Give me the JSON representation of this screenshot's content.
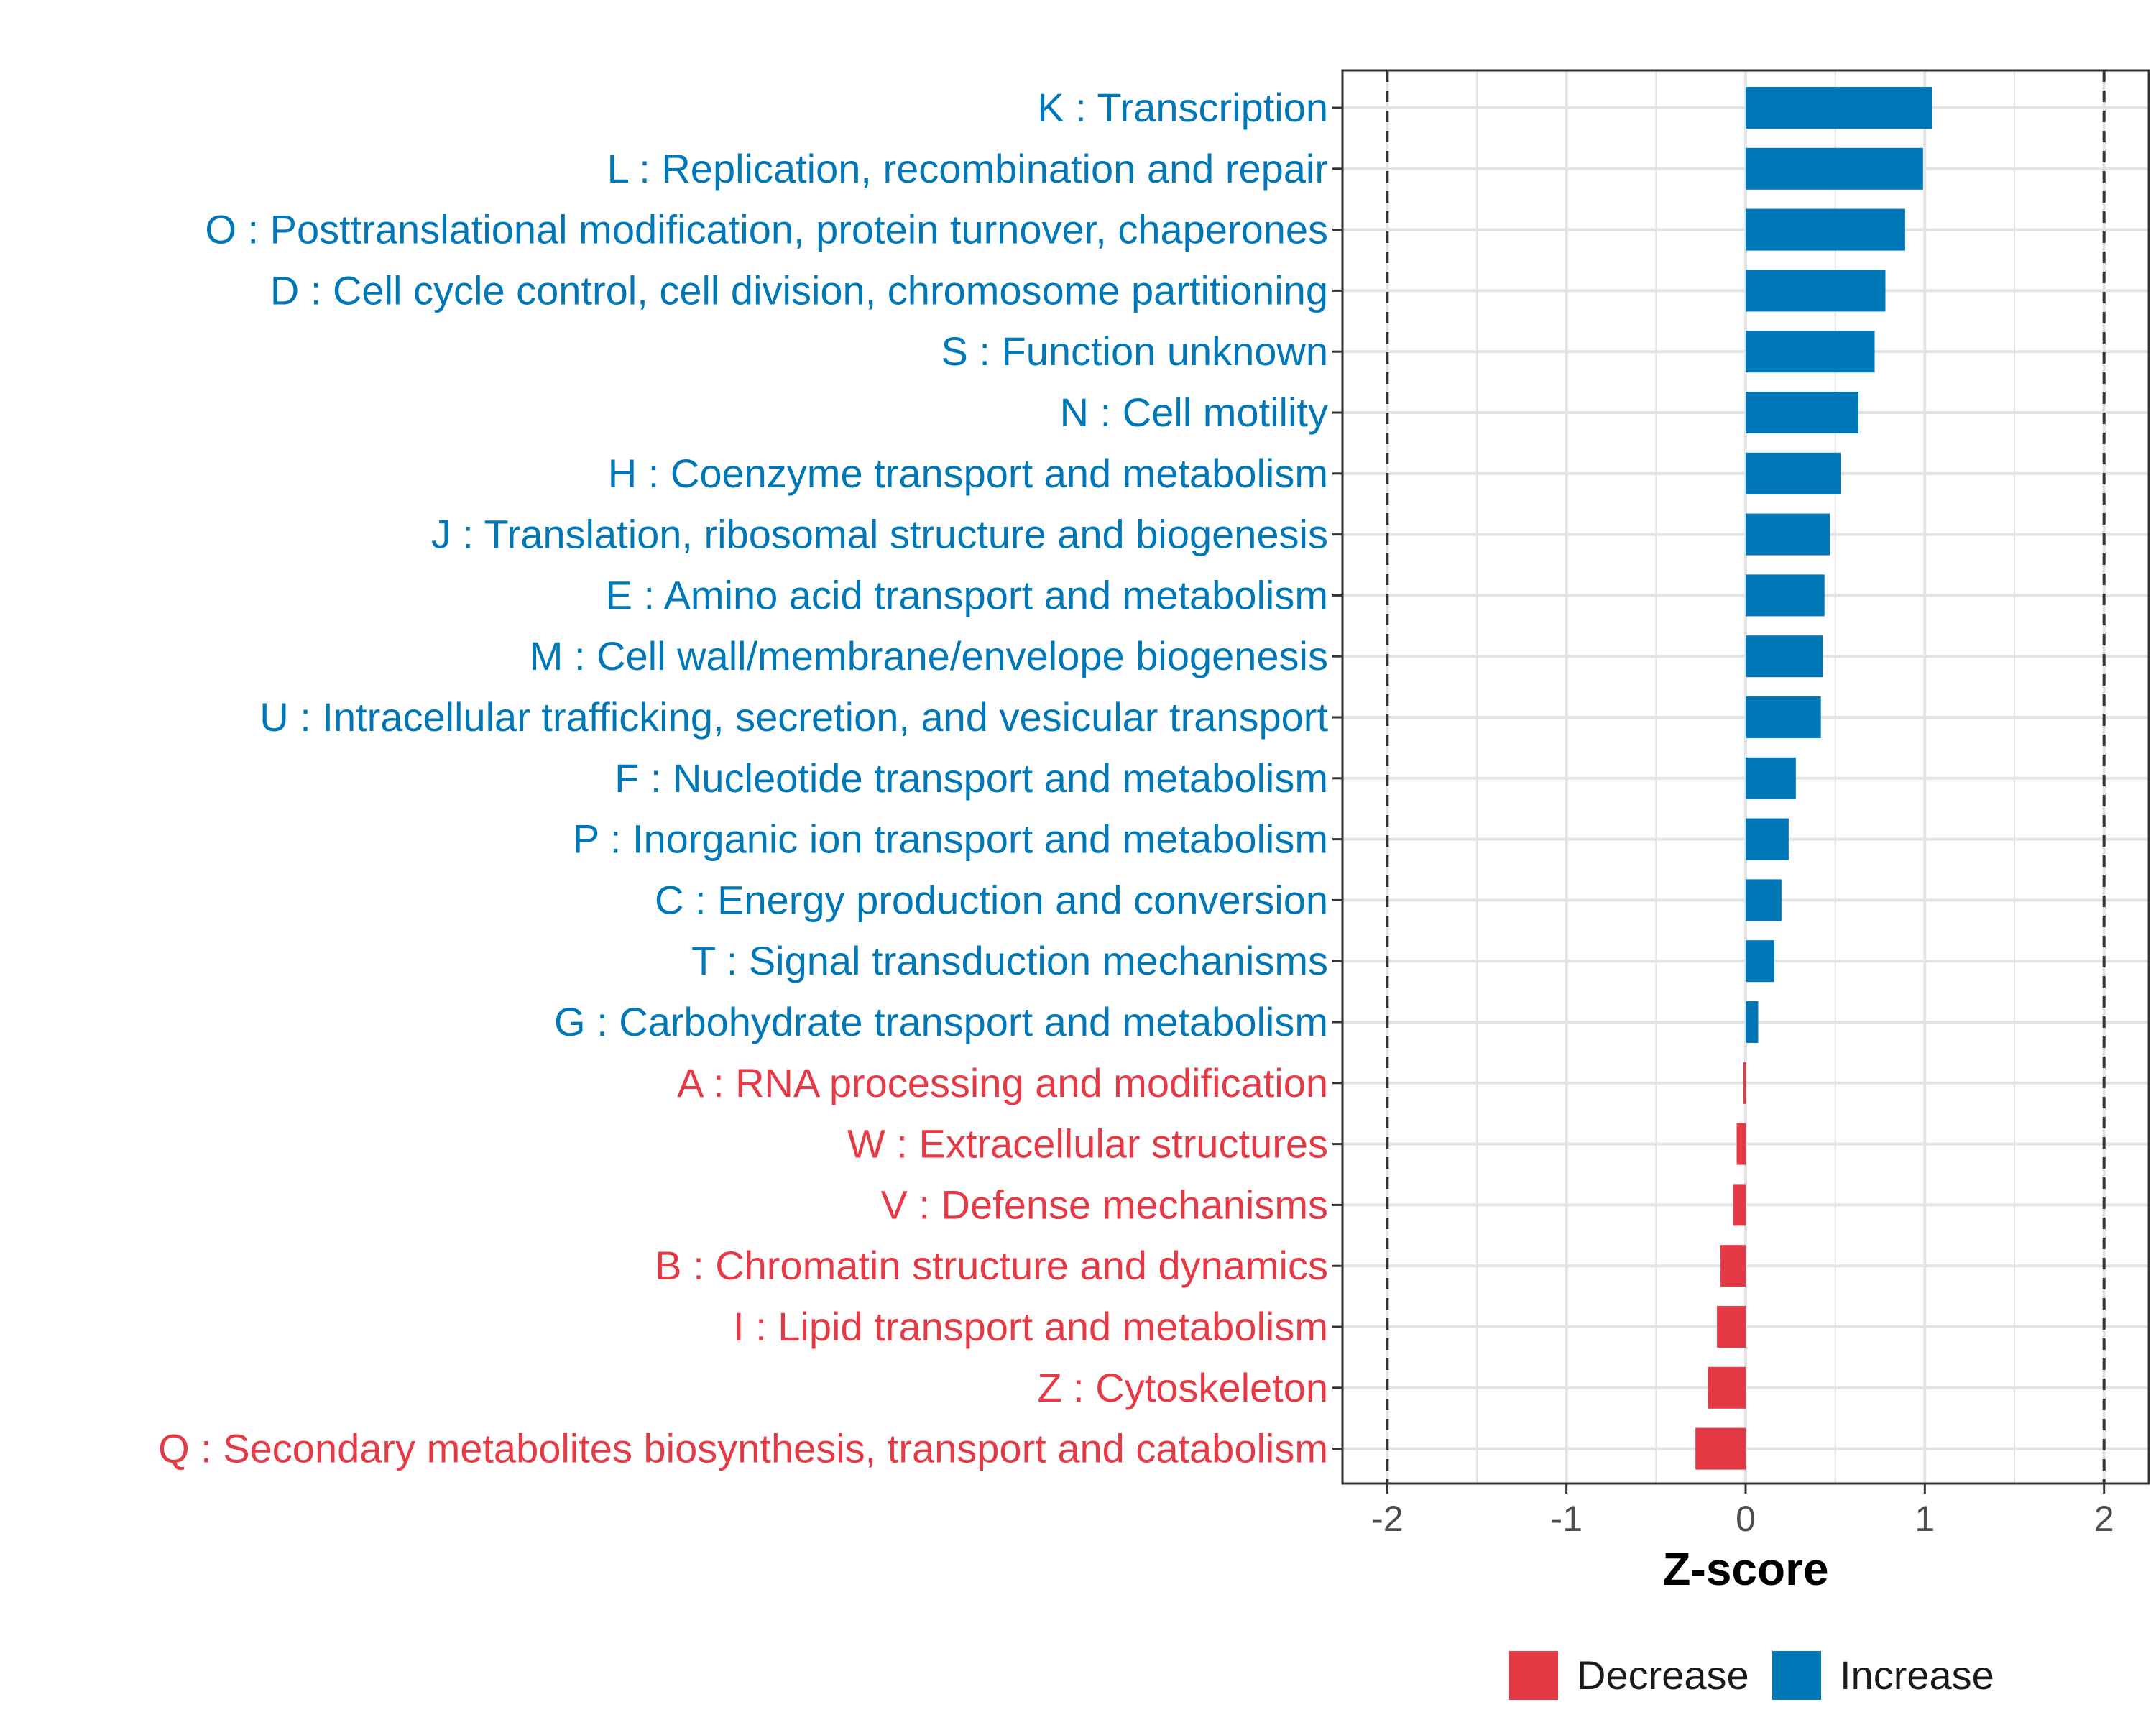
{
  "chart_data": {
    "type": "bar",
    "orientation": "horizontal",
    "xlabel": "Z-score",
    "ylabel": "",
    "xlim": [
      -2.25,
      2.25
    ],
    "x_ticks": [
      -2,
      -1,
      0,
      1,
      2
    ],
    "x_tick_labels": [
      "-2",
      "-1",
      "0",
      "1",
      "2"
    ],
    "reference_lines": [
      -2,
      2
    ],
    "grid": true,
    "colors": {
      "increase": "#0077B6",
      "decrease": "#E63946"
    },
    "categories": [
      "K : Transcription",
      "L : Replication, recombination and repair",
      "O : Posttranslational modification, protein turnover, chaperones",
      "D : Cell cycle control, cell division, chromosome partitioning",
      "S : Function unknown",
      "N : Cell motility",
      "H : Coenzyme transport and metabolism",
      "J : Translation, ribosomal structure and biogenesis",
      "E : Amino acid transport and metabolism",
      "M : Cell wall/membrane/envelope biogenesis",
      "U : Intracellular trafficking, secretion, and vesicular transport",
      "F : Nucleotide transport and metabolism",
      "P : Inorganic ion transport and metabolism",
      "C : Energy production and conversion",
      "T : Signal transduction mechanisms",
      "G : Carbohydrate transport and metabolism",
      "A : RNA processing and modification",
      "W : Extracellular structures",
      "V : Defense mechanisms",
      "B : Chromatin structure and dynamics",
      "I : Lipid transport and metabolism",
      "Z : Cytoskeleton",
      "Q : Secondary metabolites biosynthesis, transport and catabolism"
    ],
    "values": [
      1.04,
      0.99,
      0.89,
      0.78,
      0.72,
      0.63,
      0.53,
      0.47,
      0.44,
      0.43,
      0.42,
      0.28,
      0.24,
      0.2,
      0.16,
      0.07,
      -0.01,
      -0.05,
      -0.07,
      -0.14,
      -0.16,
      -0.21,
      -0.28
    ],
    "groups": [
      "Increase",
      "Increase",
      "Increase",
      "Increase",
      "Increase",
      "Increase",
      "Increase",
      "Increase",
      "Increase",
      "Increase",
      "Increase",
      "Increase",
      "Increase",
      "Increase",
      "Increase",
      "Increase",
      "Decrease",
      "Decrease",
      "Decrease",
      "Decrease",
      "Decrease",
      "Decrease",
      "Decrease"
    ],
    "legend": {
      "placement": "bottom",
      "entries": [
        {
          "label": "Decrease",
          "color": "#E63946"
        },
        {
          "label": "Increase",
          "color": "#0077B6"
        }
      ]
    }
  }
}
